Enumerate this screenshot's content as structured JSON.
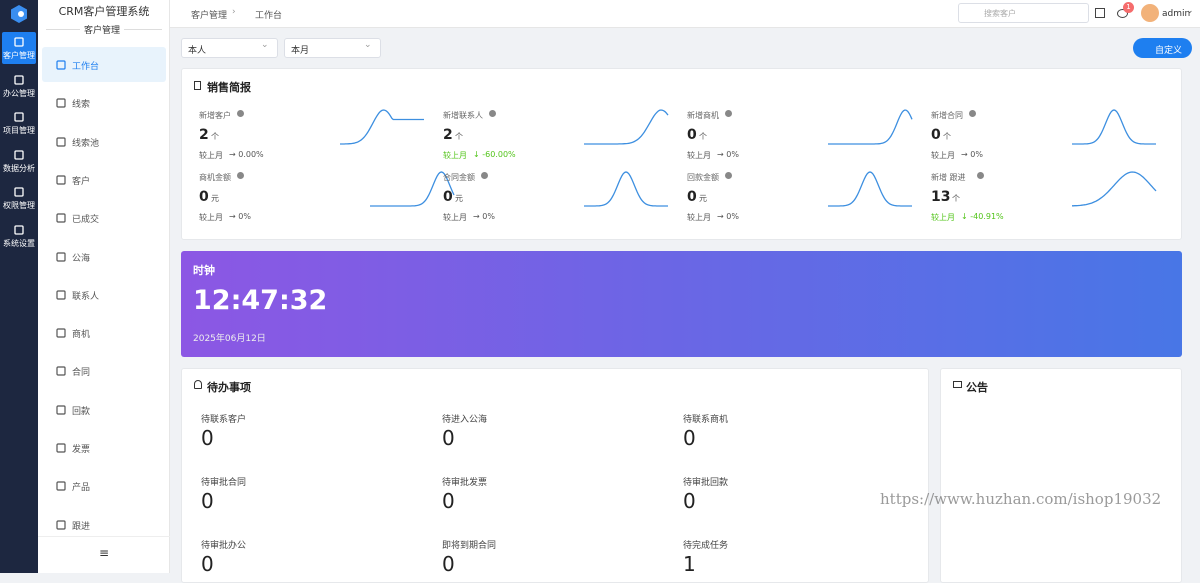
{
  "app": {
    "title": "CRM客户管理系统",
    "section": "客户管理"
  },
  "main_nav": [
    "客户管理",
    "办公管理",
    "项目管理",
    "数据分析",
    "权限管理",
    "系统设置"
  ],
  "sub_nav": [
    "工作台",
    "线索",
    "线索池",
    "客户",
    "已成交",
    "公海",
    "联系人",
    "商机",
    "合同",
    "回款",
    "发票",
    "产品",
    "跟进"
  ],
  "breadcrumb": [
    "客户管理",
    "工作台"
  ],
  "search_placeholder": "搜索客户",
  "notification_count": "1",
  "user": "admin",
  "filters": [
    "本人",
    "本月"
  ],
  "custom_button": "自定义",
  "sales_report": {
    "title": "销售简报",
    "compare_label": "较上月",
    "metrics": [
      {
        "label": "新增客户",
        "value": "2",
        "unit": "个",
        "change": "→ 0.00%",
        "trend": "flat"
      },
      {
        "label": "新增联系人",
        "value": "2",
        "unit": "个",
        "change": "↓ -60.00%",
        "trend": "down"
      },
      {
        "label": "新增商机",
        "value": "0",
        "unit": "个",
        "change": "→ 0%",
        "trend": "flat"
      },
      {
        "label": "新增合同",
        "value": "0",
        "unit": "个",
        "change": "→ 0%",
        "trend": "flat"
      },
      {
        "label": "商机金额",
        "value": "0",
        "unit": "元",
        "change": "→ 0%",
        "trend": "flat"
      },
      {
        "label": "合同金额",
        "value": "0",
        "unit": "元",
        "change": "→ 0%",
        "trend": "flat"
      },
      {
        "label": "回款金额",
        "value": "0",
        "unit": "元",
        "change": "→ 0%",
        "trend": "flat"
      },
      {
        "label": "新增 跟进",
        "value": "13",
        "unit": "个",
        "change": "↓ -40.91%",
        "trend": "down"
      }
    ]
  },
  "clock": {
    "title": "时钟",
    "time": "12:47:32",
    "date": "2025年06月12日"
  },
  "todo": {
    "title": "待办事项",
    "items": [
      {
        "label": "待联系客户",
        "count": "0"
      },
      {
        "label": "待进入公海",
        "count": "0"
      },
      {
        "label": "待联系商机",
        "count": "0"
      },
      {
        "label": "待审批合同",
        "count": "0"
      },
      {
        "label": "待审批发票",
        "count": "0"
      },
      {
        "label": "待审批回款",
        "count": "0"
      },
      {
        "label": "待审批办公",
        "count": "0"
      },
      {
        "label": "即将到期合同",
        "count": "0"
      },
      {
        "label": "待完成任务",
        "count": "1"
      }
    ]
  },
  "notice": {
    "title": "公告"
  },
  "watermark": "https://www.huzhan.com/ishop19032"
}
